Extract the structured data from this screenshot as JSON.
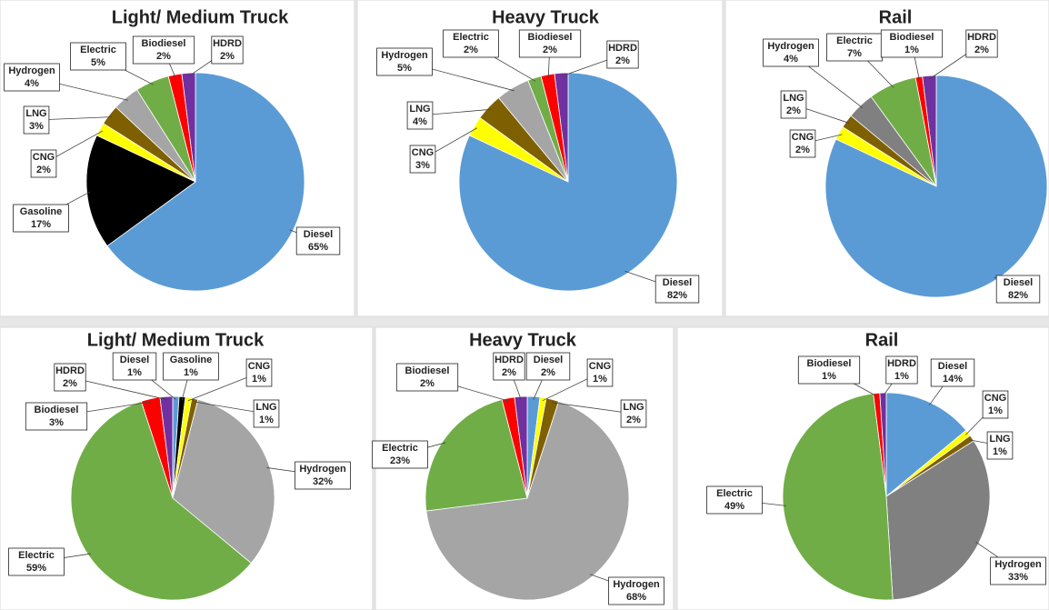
{
  "chart_data": [
    {
      "type": "pie",
      "title": "Light/ Medium Truck",
      "categories": [
        "Diesel",
        "Gasoline",
        "CNG",
        "LNG",
        "Hydrogen",
        "Electric",
        "Biodiesel",
        "HDRD"
      ],
      "values": [
        65,
        17,
        2,
        3,
        4,
        5,
        2,
        2
      ],
      "value_labels": [
        "65%",
        "17%",
        "2%",
        "3%",
        "4%",
        "5%",
        "2%",
        "2%"
      ],
      "colors": [
        "#5b9bd5",
        "#000000",
        "#ffff00",
        "#7f6000",
        "#a5a5a5",
        "#70ad47",
        "#ff0000",
        "#7030a0"
      ]
    },
    {
      "type": "pie",
      "title": "Heavy Truck",
      "categories": [
        "Diesel",
        "CNG",
        "LNG",
        "Hydrogen",
        "Electric",
        "Biodiesel",
        "HDRD"
      ],
      "values": [
        82,
        3,
        4,
        5,
        2,
        2,
        2
      ],
      "value_labels": [
        "82%",
        "3%",
        "4%",
        "5%",
        "2%",
        "2%",
        "2%"
      ],
      "colors": [
        "#5b9bd5",
        "#ffff00",
        "#7f6000",
        "#a5a5a5",
        "#70ad47",
        "#ff0000",
        "#7030a0"
      ]
    },
    {
      "type": "pie",
      "title": "Rail",
      "categories": [
        "Diesel",
        "CNG",
        "LNG",
        "Hydrogen",
        "Electric",
        "Biodiesel",
        "HDRD"
      ],
      "values": [
        82,
        2,
        2,
        4,
        7,
        1,
        2
      ],
      "value_labels": [
        "82%",
        "2%",
        "2%",
        "4%",
        "7%",
        "1%",
        "2%"
      ],
      "colors": [
        "#5b9bd5",
        "#ffff00",
        "#7f6000",
        "#808080",
        "#70ad47",
        "#ff0000",
        "#7030a0"
      ]
    },
    {
      "type": "pie",
      "title": "Light/ Medium Truck",
      "categories": [
        "Diesel",
        "Gasoline",
        "CNG",
        "LNG",
        "Hydrogen",
        "Electric",
        "Biodiesel",
        "HDRD"
      ],
      "values": [
        1,
        1,
        1,
        1,
        32,
        59,
        3,
        2
      ],
      "value_labels": [
        "1%",
        "1%",
        "1%",
        "1%",
        "32%",
        "59%",
        "3%",
        "2%"
      ],
      "colors": [
        "#5b9bd5",
        "#000000",
        "#ffff00",
        "#7f6000",
        "#a5a5a5",
        "#70ad47",
        "#ff0000",
        "#7030a0"
      ]
    },
    {
      "type": "pie",
      "title": "Heavy Truck",
      "categories": [
        "Diesel",
        "CNG",
        "LNG",
        "Hydrogen",
        "Electric",
        "Biodiesel",
        "HDRD"
      ],
      "values": [
        2,
        1,
        2,
        68,
        23,
        2,
        2
      ],
      "value_labels": [
        "2%",
        "1%",
        "2%",
        "68%",
        "23%",
        "2%",
        "2%"
      ],
      "colors": [
        "#5b9bd5",
        "#ffff00",
        "#7f6000",
        "#a5a5a5",
        "#70ad47",
        "#ff0000",
        "#7030a0"
      ]
    },
    {
      "type": "pie",
      "title": "Rail",
      "categories": [
        "Diesel",
        "CNG",
        "LNG",
        "Hydrogen",
        "Electric",
        "Biodiesel",
        "HDRD"
      ],
      "values": [
        14,
        1,
        1,
        33,
        49,
        1,
        1
      ],
      "value_labels": [
        "14%",
        "1%",
        "1%",
        "33%",
        "49%",
        "1%",
        "1%"
      ],
      "colors": [
        "#5b9bd5",
        "#ffff00",
        "#7f6000",
        "#808080",
        "#70ad47",
        "#ff0000",
        "#7030a0"
      ]
    }
  ]
}
